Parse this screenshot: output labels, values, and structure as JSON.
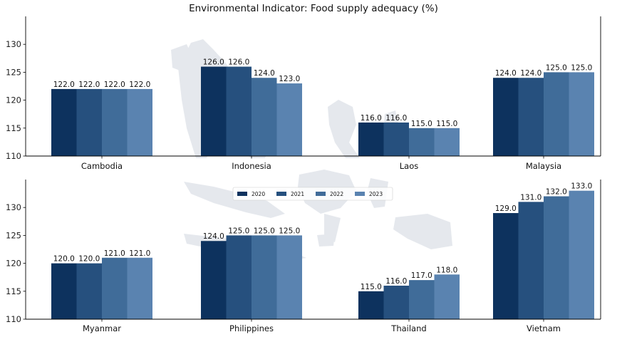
{
  "chart_data": {
    "type": "bar",
    "title": "Environmental Indicator: Food supply adequacy (%)",
    "xlabel": "",
    "ylabel": "",
    "ylim": [
      110,
      135
    ],
    "yticks": [
      110,
      115,
      120,
      125,
      130
    ],
    "grid": false,
    "legend_position": "center",
    "series": [
      {
        "name": "2020",
        "color": "#0d325e"
      },
      {
        "name": "2021",
        "color": "#26507e"
      },
      {
        "name": "2022",
        "color": "#406c99"
      },
      {
        "name": "2023",
        "color": "#5a83b0"
      }
    ],
    "panels": [
      {
        "category": "Cambodia",
        "values": [
          122.0,
          122.0,
          122.0,
          122.0
        ],
        "labels": [
          "122.0",
          "122.0",
          "122.0",
          "122.0"
        ]
      },
      {
        "category": "Indonesia",
        "values": [
          126.0,
          126.0,
          124.0,
          123.0
        ],
        "labels": [
          "126.0",
          "126.0",
          "124.0",
          "123.0"
        ]
      },
      {
        "category": "Laos",
        "values": [
          116.0,
          116.0,
          115.0,
          115.0
        ],
        "labels": [
          "116.0",
          "116.0",
          "115.0",
          "115.0"
        ]
      },
      {
        "category": "Malaysia",
        "values": [
          124.0,
          124.0,
          125.0,
          125.0
        ],
        "labels": [
          "124.0",
          "124.0",
          "125.0",
          "125.0"
        ]
      },
      {
        "category": "Myanmar",
        "values": [
          120.0,
          120.0,
          121.0,
          121.0
        ],
        "labels": [
          "120.0",
          "120.0",
          "121.0",
          "121.0"
        ]
      },
      {
        "category": "Philippines",
        "values": [
          124.0,
          125.0,
          125.0,
          125.0
        ],
        "labels": [
          "124.0",
          "125.0",
          "125.0",
          "125.0"
        ]
      },
      {
        "category": "Thailand",
        "values": [
          115.0,
          116.0,
          117.0,
          118.0
        ],
        "labels": [
          "115.0",
          "116.0",
          "117.0",
          "118.0"
        ]
      },
      {
        "category": "Vietnam",
        "values": [
          129.0,
          131.0,
          132.0,
          133.0
        ],
        "labels": [
          "129.0",
          "131.0",
          "132.0",
          "133.0"
        ]
      }
    ]
  }
}
